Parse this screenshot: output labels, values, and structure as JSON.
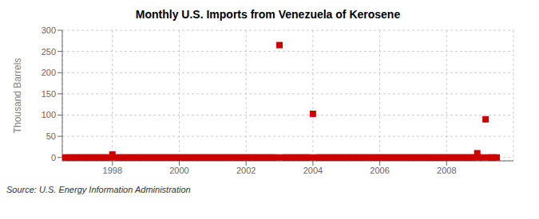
{
  "chart_data": {
    "type": "scatter",
    "title": "Monthly U.S. Imports from Venezuela of Kerosene",
    "y_label": "Thousand Barrels",
    "annotations": [
      "Source: U.S. Energy Information Administration"
    ],
    "color": "#cc0000",
    "marker": "square",
    "grid": true,
    "xlim": [
      1996.5,
      2010.0
    ],
    "ylim": [
      -8,
      300
    ],
    "xticks": [
      1998,
      2000,
      2002,
      2004,
      2006,
      2008
    ],
    "yticks": [
      0,
      50,
      100,
      150,
      200,
      250,
      300
    ],
    "x": [
      1996.583,
      1996.667,
      1996.75,
      1996.833,
      1996.917,
      1997.0,
      1997.083,
      1997.167,
      1997.25,
      1997.333,
      1997.417,
      1997.5,
      1997.583,
      1997.667,
      1997.75,
      1997.833,
      1997.917,
      1998.0,
      1998.083,
      1998.167,
      1998.25,
      1998.333,
      1998.417,
      1998.5,
      1998.583,
      1998.667,
      1998.75,
      1998.833,
      1998.917,
      1999.0,
      1999.083,
      1999.167,
      1999.25,
      1999.333,
      1999.417,
      1999.5,
      1999.583,
      1999.667,
      1999.75,
      1999.833,
      1999.917,
      2000.0,
      2000.083,
      2000.167,
      2000.25,
      2000.333,
      2000.417,
      2000.5,
      2000.583,
      2000.667,
      2000.75,
      2000.833,
      2000.917,
      2001.0,
      2001.083,
      2001.167,
      2001.25,
      2001.333,
      2001.417,
      2001.5,
      2001.583,
      2001.667,
      2001.75,
      2001.833,
      2001.917,
      2002.0,
      2002.083,
      2002.167,
      2002.25,
      2002.333,
      2002.417,
      2002.5,
      2002.583,
      2002.667,
      2002.75,
      2002.833,
      2002.917,
      2003.0,
      2003.083,
      2003.167,
      2003.25,
      2003.333,
      2003.417,
      2003.5,
      2003.583,
      2003.667,
      2003.75,
      2003.833,
      2003.917,
      2004.0,
      2004.083,
      2004.167,
      2004.25,
      2004.333,
      2004.417,
      2004.5,
      2004.583,
      2004.667,
      2004.75,
      2004.833,
      2004.917,
      2005.0,
      2005.083,
      2005.167,
      2005.25,
      2005.333,
      2005.417,
      2005.5,
      2005.583,
      2005.667,
      2005.75,
      2005.833,
      2005.917,
      2006.0,
      2006.083,
      2006.167,
      2006.25,
      2006.333,
      2006.417,
      2006.5,
      2006.583,
      2006.667,
      2006.75,
      2006.833,
      2006.917,
      2007.0,
      2007.083,
      2007.167,
      2007.25,
      2007.333,
      2007.417,
      2007.5,
      2007.583,
      2007.667,
      2007.75,
      2007.833,
      2007.917,
      2008.0,
      2008.083,
      2008.167,
      2008.25,
      2008.333,
      2008.417,
      2008.5,
      2008.583,
      2008.667,
      2008.75,
      2008.833,
      2008.917,
      2009.0,
      2009.083,
      2009.167,
      2009.25,
      2009.333,
      2009.417,
      2009.5
    ],
    "values": [
      0,
      0,
      0,
      0,
      0,
      0,
      0,
      0,
      0,
      0,
      0,
      0,
      0,
      0,
      0,
      0,
      0,
      7,
      0,
      0,
      0,
      0,
      0,
      0,
      0,
      0,
      0,
      0,
      0,
      0,
      0,
      0,
      0,
      0,
      0,
      0,
      0,
      0,
      0,
      0,
      0,
      0,
      0,
      0,
      0,
      0,
      0,
      0,
      0,
      0,
      0,
      0,
      0,
      0,
      0,
      0,
      0,
      0,
      0,
      0,
      0,
      0,
      0,
      0,
      0,
      0,
      0,
      0,
      0,
      0,
      0,
      0,
      0,
      0,
      0,
      0,
      0,
      265,
      0,
      0,
      0,
      0,
      0,
      0,
      0,
      0,
      0,
      0,
      0,
      103,
      0,
      0,
      0,
      0,
      0,
      0,
      0,
      0,
      0,
      0,
      0,
      0,
      0,
      0,
      0,
      0,
      0,
      0,
      0,
      0,
      0,
      0,
      0,
      0,
      0,
      0,
      0,
      0,
      0,
      0,
      0,
      0,
      0,
      0,
      0,
      0,
      0,
      0,
      0,
      0,
      0,
      0,
      0,
      0,
      0,
      0,
      0,
      0,
      0,
      0,
      0,
      0,
      0,
      0,
      0,
      0,
      0,
      0,
      10,
      0,
      0,
      90,
      0,
      0,
      0,
      0
    ]
  }
}
